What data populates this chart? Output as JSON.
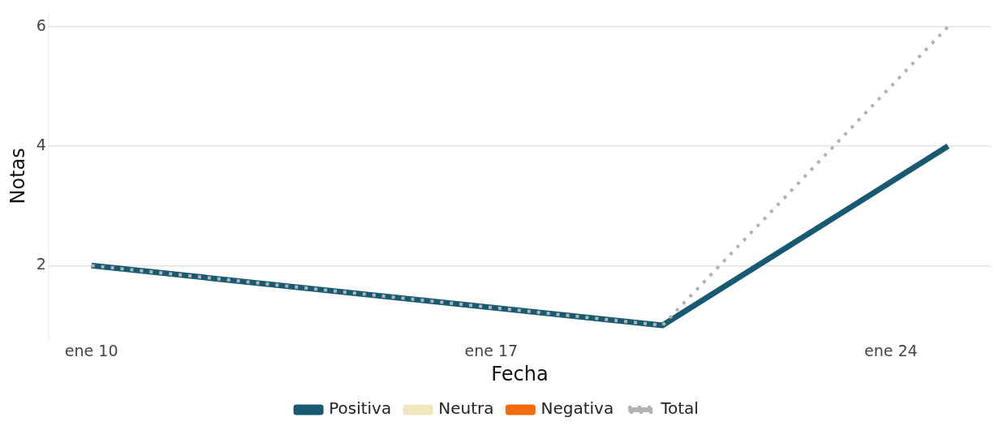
{
  "chart_data": {
    "type": "line",
    "xlabel": "Fecha",
    "ylabel": "Notas",
    "x": [
      "--01-10",
      "--01-20",
      "--01-25"
    ],
    "xlim": [
      "--01-09T06:00",
      "--01-25T18:00"
    ],
    "xticks": [
      {
        "value": "--01-10",
        "label": "ene 10"
      },
      {
        "value": "--01-17",
        "label": "ene 17"
      },
      {
        "value": "--01-24",
        "label": "ene 24"
      }
    ],
    "ylim": [
      0.75,
      6.25
    ],
    "yticks": [
      2,
      4,
      6
    ],
    "series": [
      {
        "name": "Positiva",
        "color": "#175a72",
        "values": [
          2,
          1,
          4
        ]
      },
      {
        "name": "Neutra",
        "color": "#f2e6bf",
        "values": [
          null,
          null,
          null
        ]
      },
      {
        "name": "Negativa",
        "color": "#f26b0f",
        "values": [
          null,
          null,
          null
        ]
      },
      {
        "name": "Total",
        "color": "#b3b3b3",
        "values": [
          2,
          1,
          6
        ],
        "line_style": "dotted"
      }
    ],
    "grid": "y",
    "legend": "bottom",
    "marker": "none"
  }
}
